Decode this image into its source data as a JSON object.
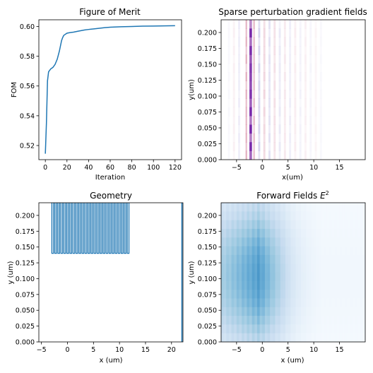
{
  "chart_data": [
    {
      "type": "line",
      "title": "Figure of Merit",
      "xlabel": "Iteration",
      "ylabel": "FOM",
      "xlim": [
        -6,
        126
      ],
      "ylim": [
        0.5105,
        0.6045
      ],
      "xticks": [
        0,
        20,
        40,
        60,
        80,
        100,
        120
      ],
      "xtick_labels": [
        "0",
        "20",
        "40",
        "60",
        "80",
        "100",
        "120"
      ],
      "yticks": [
        0.52,
        0.54,
        0.56,
        0.58,
        0.6
      ],
      "ytick_labels": [
        "0.52",
        "0.54",
        "0.56",
        "0.58",
        "0.60"
      ],
      "color": "#1f77b4",
      "series": [
        {
          "x": [
            0,
            1,
            2,
            3,
            4,
            5,
            7,
            9,
            11,
            13,
            15,
            16,
            17,
            18,
            19,
            20,
            22,
            24,
            26,
            28,
            30,
            33,
            36,
            40,
            45,
            50,
            55,
            60,
            70,
            80,
            90,
            100,
            110,
            120
          ],
          "values": [
            0.5145,
            0.535,
            0.5635,
            0.5695,
            0.5705,
            0.5715,
            0.5725,
            0.5745,
            0.578,
            0.5835,
            0.5905,
            0.5925,
            0.594,
            0.5945,
            0.595,
            0.5955,
            0.5958,
            0.596,
            0.5962,
            0.5965,
            0.5968,
            0.5972,
            0.5976,
            0.598,
            0.5984,
            0.5988,
            0.5992,
            0.5995,
            0.5998,
            0.6,
            0.6002,
            0.6003,
            0.6004,
            0.6005
          ]
        }
      ]
    },
    {
      "type": "heatmap",
      "title": "Sparse perturbation gradient fields",
      "xlabel": "x(um)",
      "ylabel": "y(um)",
      "xlim": [
        -8,
        20
      ],
      "ylim": [
        0,
        0.22
      ],
      "xticks": [
        -5,
        0,
        5,
        10,
        15
      ],
      "xtick_labels": [
        "−5",
        "0",
        "5",
        "10",
        "15"
      ],
      "yticks": [
        0,
        0.025,
        0.05,
        0.075,
        0.1,
        0.125,
        0.15,
        0.175,
        0.2
      ],
      "ytick_labels": [
        "0.000",
        "0.025",
        "0.050",
        "0.075",
        "0.100",
        "0.125",
        "0.150",
        "0.175",
        "0.200"
      ],
      "colormap": "diverging red-white-blue (purple where mixed)",
      "columns": [
        {
          "x": -2.25,
          "width": 0.5,
          "intensity": 1.0,
          "sign": 1
        },
        {
          "x": -3.1,
          "width": 0.3,
          "intensity": 0.45,
          "sign": 1
        },
        {
          "x": -1.6,
          "width": 0.3,
          "intensity": 0.4,
          "sign": 1
        },
        {
          "x": -0.6,
          "width": 0.4,
          "intensity": 0.3,
          "sign": -1
        },
        {
          "x": 0.4,
          "width": 0.4,
          "intensity": 0.22,
          "sign": 1
        },
        {
          "x": 1.4,
          "width": 0.4,
          "intensity": 0.2,
          "sign": -1
        },
        {
          "x": 2.4,
          "width": 0.4,
          "intensity": 0.17,
          "sign": 1
        },
        {
          "x": 3.4,
          "width": 0.4,
          "intensity": 0.15,
          "sign": -1
        },
        {
          "x": 4.4,
          "width": 0.4,
          "intensity": 0.12,
          "sign": 1
        },
        {
          "x": 5.4,
          "width": 0.4,
          "intensity": 0.12,
          "sign": -1
        },
        {
          "x": 6.4,
          "width": 0.4,
          "intensity": 0.1,
          "sign": 1
        },
        {
          "x": 7.4,
          "width": 0.4,
          "intensity": 0.09,
          "sign": -1
        },
        {
          "x": 8.4,
          "width": 0.4,
          "intensity": 0.08,
          "sign": 1
        },
        {
          "x": 9.4,
          "width": 0.4,
          "intensity": 0.07,
          "sign": -1
        },
        {
          "x": 10.4,
          "width": 0.4,
          "intensity": 0.06,
          "sign": 1
        },
        {
          "x": 11.4,
          "width": 0.4,
          "intensity": 0.05,
          "sign": -1
        },
        {
          "x": -4.5,
          "width": 0.4,
          "intensity": 0.12,
          "sign": -1
        },
        {
          "x": -5.5,
          "width": 0.4,
          "intensity": 0.08,
          "sign": 1
        },
        {
          "x": -6.5,
          "width": 0.4,
          "intensity": 0.05,
          "sign": -1
        }
      ]
    },
    {
      "type": "line",
      "title": "Geometry",
      "xlabel": "x (um)",
      "ylabel": "y (um)",
      "xlim": [
        -5.5,
        22.2
      ],
      "ylim": [
        0,
        0.22
      ],
      "xticks": [
        -5,
        0,
        5,
        10,
        15,
        20
      ],
      "xtick_labels": [
        "−5",
        "0",
        "5",
        "10",
        "15",
        "20"
      ],
      "yticks": [
        0,
        0.025,
        0.05,
        0.075,
        0.1,
        0.125,
        0.15,
        0.175,
        0.2
      ],
      "ytick_labels": [
        "0.000",
        "0.025",
        "0.050",
        "0.075",
        "0.100",
        "0.125",
        "0.150",
        "0.175",
        "0.200"
      ],
      "color": "#1f77b4",
      "teeth": {
        "x_start": -3.0,
        "pitch": 0.58,
        "count": 26,
        "duty": 0.55,
        "y_bottom": 0.14,
        "y_top": 0.22
      },
      "right_wall_x": 22.0
    },
    {
      "type": "heatmap",
      "title": "Forward Fields ",
      "title_superscript_base": "E",
      "title_superscript": "2",
      "xlabel": "x (um)",
      "ylabel": "y (um)",
      "xlim": [
        -8,
        20
      ],
      "ylim": [
        0,
        0.22
      ],
      "xticks": [
        -5,
        0,
        5,
        10,
        15
      ],
      "xtick_labels": [
        "−5",
        "0",
        "5",
        "10",
        "15"
      ],
      "yticks": [
        0,
        0.025,
        0.05,
        0.075,
        0.1,
        0.125,
        0.15,
        0.175,
        0.2
      ],
      "ytick_labels": [
        "0.000",
        "0.025",
        "0.050",
        "0.075",
        "0.100",
        "0.125",
        "0.150",
        "0.175",
        "0.200"
      ],
      "colormap": "Blues",
      "rows": 16,
      "columns": 56
    }
  ]
}
